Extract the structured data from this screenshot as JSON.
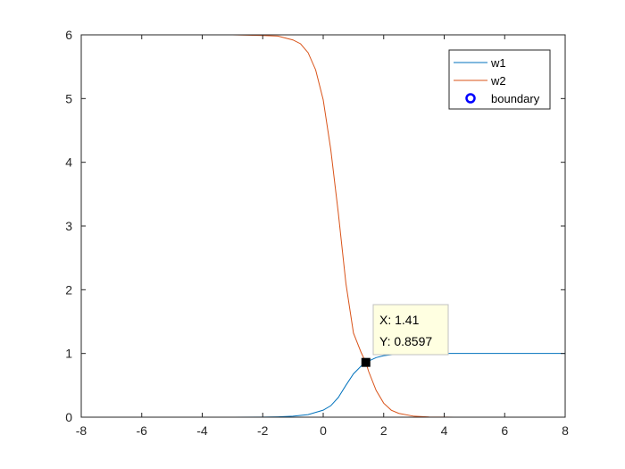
{
  "chart_data": {
    "type": "line",
    "xlim": [
      -8,
      8
    ],
    "ylim": [
      0,
      6
    ],
    "x_ticks": [
      -8,
      -6,
      -4,
      -2,
      0,
      2,
      4,
      6,
      8
    ],
    "y_ticks": [
      0,
      1,
      2,
      3,
      4,
      5,
      6
    ],
    "grid": false,
    "legend_position": "top-right",
    "legend": [
      "w1",
      "w2",
      "boundary"
    ],
    "series": [
      {
        "name": "w1",
        "color": "#0072BD",
        "x": [
          -8,
          -3,
          -2,
          -1.5,
          -1,
          -0.5,
          0,
          0.25,
          0.5,
          0.75,
          1,
          1.25,
          1.41,
          1.5,
          1.75,
          2,
          2.25,
          2.5,
          3,
          3.5,
          4,
          5,
          8
        ],
        "y": [
          0,
          0,
          0.002,
          0.006,
          0.015,
          0.04,
          0.11,
          0.18,
          0.31,
          0.5,
          0.68,
          0.8,
          0.8597,
          0.88,
          0.935,
          0.965,
          0.98,
          0.99,
          0.997,
          0.999,
          1,
          1,
          1
        ]
      },
      {
        "name": "w2",
        "color": "#D95319",
        "x": [
          -8,
          -3,
          -2,
          -1.5,
          -1,
          -0.75,
          -0.5,
          -0.25,
          0,
          0.25,
          0.5,
          0.75,
          1,
          1.25,
          1.41,
          1.5,
          1.75,
          2,
          2.25,
          2.5,
          3,
          3.5,
          4,
          5,
          8
        ],
        "y": [
          6,
          6,
          5.99,
          5.98,
          5.92,
          5.86,
          5.72,
          5.45,
          4.98,
          4.2,
          3.2,
          2.1,
          1.32,
          1.02,
          0.8597,
          0.72,
          0.42,
          0.22,
          0.11,
          0.06,
          0.015,
          0.004,
          0.001,
          0,
          0
        ]
      },
      {
        "name": "boundary",
        "color": "#0000FF",
        "marker": "circle",
        "x": [],
        "y": []
      }
    ],
    "datatip": {
      "x": 1.41,
      "y": 0.8597,
      "x_label": "X: 1.41",
      "y_label": "Y: 0.8597"
    }
  }
}
